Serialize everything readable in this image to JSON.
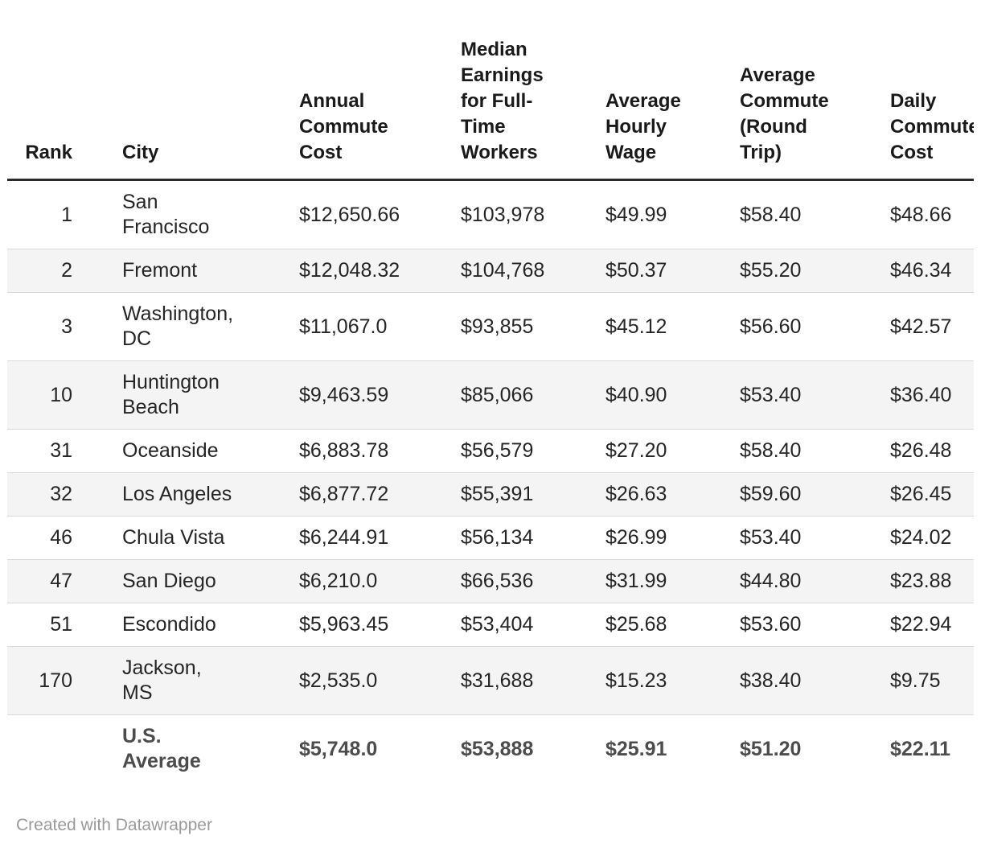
{
  "chart_data": {
    "type": "table",
    "columns": [
      "Rank",
      "City",
      "Annual Commute Cost",
      "Median Earnings for Full-Time Workers",
      "Average Hourly Wage",
      "Average Commute (Round Trip)",
      "Daily Commute Cost"
    ],
    "rows": [
      [
        "1",
        "San Francisco",
        "$12,650.66",
        "$103,978",
        "$49.99",
        "$58.40",
        "$48.66"
      ],
      [
        "2",
        "Fremont",
        "$12,048.32",
        "$104,768",
        "$50.37",
        "$55.20",
        "$46.34"
      ],
      [
        "3",
        "Washington, DC",
        "$11,067.0",
        "$93,855",
        "$45.12",
        "$56.60",
        "$42.57"
      ],
      [
        "10",
        "Huntington Beach",
        "$9,463.59",
        "$85,066",
        "$40.90",
        "$53.40",
        "$36.40"
      ],
      [
        "31",
        "Oceanside",
        "$6,883.78",
        "$56,579",
        "$27.20",
        "$58.40",
        "$26.48"
      ],
      [
        "32",
        "Los Angeles",
        "$6,877.72",
        "$55,391",
        "$26.63",
        "$59.60",
        "$26.45"
      ],
      [
        "46",
        "Chula Vista",
        "$6,244.91",
        "$56,134",
        "$26.99",
        "$53.40",
        "$24.02"
      ],
      [
        "47",
        "San Diego",
        "$6,210.0",
        "$66,536",
        "$31.99",
        "$44.80",
        "$23.88"
      ],
      [
        "51",
        "Escondido",
        "$5,963.45",
        "$53,404",
        "$25.68",
        "$53.60",
        "$22.94"
      ],
      [
        "170",
        "Jackson, MS",
        "$2,535.0",
        "$31,688",
        "$15.23",
        "$38.40",
        "$9.75"
      ],
      [
        "",
        "U.S. Average",
        "$5,748.0",
        "$53,888",
        "$25.91",
        "$51.20",
        "$22.11"
      ]
    ],
    "layout_hints": {
      "zebra_striping": true,
      "header_bottom_rule": true,
      "total_row_bold": true,
      "last_column_clipped_at_right_edge": true
    }
  },
  "table": {
    "header_display": [
      "Rank",
      "City",
      "Annual\nCommute\nCost",
      "Median\nEarnings\nfor Full-\nTime\nWorkers",
      "Average\nHourly\nWage",
      "Average\nCommute\n(Round\nTrip)",
      "Daily\nCommute\nCost"
    ],
    "city_display": [
      "San\nFrancisco",
      "Fremont",
      "Washington,\nDC",
      "Huntington\nBeach",
      "Oceanside",
      "Los Angeles",
      "Chula Vista",
      "San Diego",
      "Escondido",
      "Jackson,\nMS",
      "U.S.\nAverage"
    ],
    "total_row_index": 10,
    "column_keys": [
      "rank",
      "city",
      "annual-commute-cost",
      "median-earnings",
      "hourly-wage",
      "commute-round-trip",
      "daily-commute-cost"
    ]
  },
  "footer": {
    "prefix": "Created with ",
    "link_label": "Datawrapper"
  },
  "colors": {
    "background": "#ffffff",
    "header_text": "#1a1a1a",
    "body_text": "#252525",
    "total_row_text": "#4c4c4c",
    "zebra_stripe": "#f4f4f4",
    "row_border": "#d9d9d9",
    "header_border": "#2b2b2b",
    "footer_text": "#9a9a9a"
  }
}
